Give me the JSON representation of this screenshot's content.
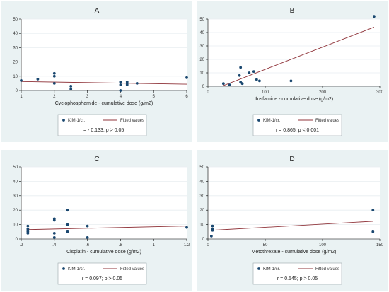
{
  "chart_data": [
    {
      "type": "scatter",
      "title": "A",
      "xlabel": "Cyclophosphamide - cumulative dose (g/m2)",
      "ylabel": "",
      "xlim": [
        1,
        6
      ],
      "ylim": [
        0,
        50
      ],
      "xticks": [
        1,
        2,
        3,
        4,
        5,
        6
      ],
      "yticks": [
        0,
        10,
        20,
        30,
        40,
        50
      ],
      "series": [
        {
          "name": "KIM-1/cr.",
          "kind": "scatter",
          "x": [
            1,
            1.5,
            2,
            2,
            2,
            2.5,
            2.5,
            4,
            4,
            4,
            4,
            4.2,
            4.2,
            4.2,
            4.5,
            6
          ],
          "y": [
            7,
            8,
            12,
            10,
            5,
            3,
            1,
            6,
            4,
            0,
            6,
            6,
            5,
            4,
            5,
            9
          ]
        },
        {
          "name": "Fitted values",
          "kind": "line",
          "x": [
            1,
            6
          ],
          "y": [
            6.3,
            4.4
          ]
        }
      ],
      "legend": [
        "KIM-1/cr.",
        "Fitted values"
      ],
      "stat_text": "r = - 0.133; p > 0.05",
      "grid": true
    },
    {
      "type": "scatter",
      "title": "B",
      "xlabel": "Ifosfamide - cumulative dose (g/m2)",
      "ylabel": "",
      "xlim": [
        0,
        300
      ],
      "ylim": [
        0,
        50
      ],
      "xticks": [
        0,
        100,
        200,
        300
      ],
      "yticks": [
        0,
        10,
        20,
        30,
        40,
        50
      ],
      "series": [
        {
          "name": "KIM-1/cr.",
          "kind": "scatter",
          "x": [
            27,
            38,
            55,
            57,
            57,
            60,
            72,
            80,
            85,
            90,
            145,
            290
          ],
          "y": [
            2,
            1,
            8,
            3,
            14,
            2,
            10,
            11,
            5,
            4,
            4,
            52
          ]
        },
        {
          "name": "Fitted values",
          "kind": "line",
          "x": [
            27,
            290
          ],
          "y": [
            0.5,
            44
          ]
        }
      ],
      "legend": [
        "KIM-1/cr.",
        "Fitted values"
      ],
      "stat_text": "r = 0.865; p < 0.001",
      "grid": true
    },
    {
      "type": "scatter",
      "title": "C",
      "xlabel": "Cisplatin - cumulative dose (g/m2)",
      "ylabel": "",
      "xlim": [
        0.2,
        1.2
      ],
      "ylim": [
        0,
        50
      ],
      "xticks": [
        0.2,
        0.4,
        0.6,
        0.8,
        1,
        1.2
      ],
      "xtick_labels": [
        ".2",
        ".4",
        ".6",
        ".8",
        "1",
        "1.2"
      ],
      "yticks": [
        0,
        10,
        20,
        30,
        40,
        50
      ],
      "series": [
        {
          "name": "KIM-1/cr.",
          "kind": "scatter",
          "x": [
            0.24,
            0.24,
            0.24,
            0.24,
            0.24,
            0.4,
            0.4,
            0.4,
            0.4,
            0.48,
            0.48,
            0.48,
            0.6,
            0.6,
            1.2
          ],
          "y": [
            9,
            7,
            6,
            5,
            4,
            14,
            13,
            4,
            1,
            20,
            10,
            5,
            9,
            1,
            8
          ]
        },
        {
          "name": "Fitted values",
          "kind": "line",
          "x": [
            0.24,
            1.2
          ],
          "y": [
            6.5,
            9
          ]
        }
      ],
      "legend": [
        "KIM-1/cr.",
        "Fitted values"
      ],
      "stat_text": "r = 0.097; p > 0.05",
      "grid": true
    },
    {
      "type": "scatter",
      "title": "D",
      "xlabel": "Metothrexate - cumulative dose (g/m2)",
      "ylabel": "",
      "xlim": [
        0,
        150
      ],
      "ylim": [
        0,
        50
      ],
      "xticks": [
        0,
        50,
        100,
        150
      ],
      "yticks": [
        0,
        10,
        20,
        30,
        40,
        50
      ],
      "series": [
        {
          "name": "KIM-1/cr.",
          "kind": "scatter",
          "x": [
            3,
            4,
            4,
            4,
            144,
            144
          ],
          "y": [
            2,
            9,
            7,
            6,
            20,
            5
          ]
        },
        {
          "name": "Fitted values",
          "kind": "line",
          "x": [
            3,
            144
          ],
          "y": [
            6,
            12.3
          ]
        }
      ],
      "legend": [
        "KIM-1/cr.",
        "Fitted values"
      ],
      "stat_text": "r = 0.545; p > 0.05",
      "grid": true
    }
  ]
}
